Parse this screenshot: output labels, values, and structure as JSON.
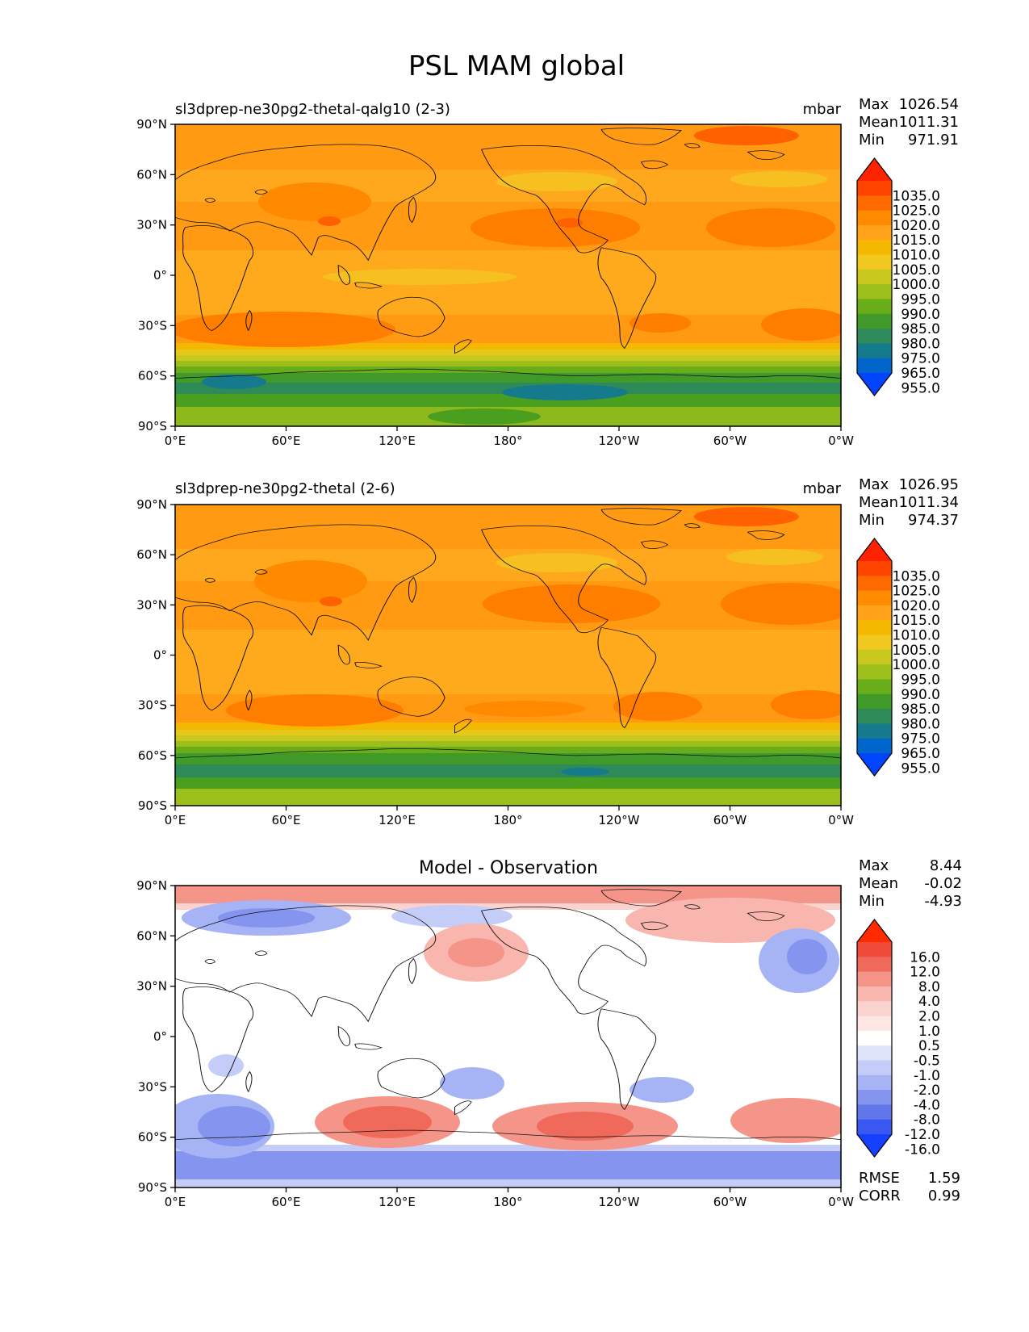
{
  "figure": {
    "title": "PSL MAM global"
  },
  "x_ticks": [
    "0°E",
    "60°E",
    "120°E",
    "180°",
    "120°W",
    "60°W",
    "0°W"
  ],
  "y_ticks": [
    "90°N",
    "60°N",
    "30°N",
    "0°",
    "30°S",
    "60°S",
    "90°S"
  ],
  "panels": [
    {
      "title_left": "sl3dprep-ne30pg2-thetal-qalg10 (2-3)",
      "title_right": "mbar",
      "stats": [
        {
          "label": "Max",
          "value": "1026.54"
        },
        {
          "label": "Mean",
          "value": "1011.31"
        },
        {
          "label": "Min",
          "value": "971.91"
        }
      ]
    },
    {
      "title_left": "sl3dprep-ne30pg2-thetal (2-6)",
      "title_right": "mbar",
      "stats": [
        {
          "label": "Max",
          "value": "1026.95"
        },
        {
          "label": "Mean",
          "value": "1011.34"
        },
        {
          "label": "Min",
          "value": "974.37"
        }
      ]
    },
    {
      "title_center": "Model - Observation",
      "stats": [
        {
          "label": "Max",
          "value": "8.44"
        },
        {
          "label": "Mean",
          "value": "-0.02"
        },
        {
          "label": "Min",
          "value": "-4.93"
        }
      ],
      "bottom_stats": [
        {
          "label": "RMSE",
          "value": "1.59"
        },
        {
          "label": "CORR",
          "value": "0.99"
        }
      ]
    }
  ],
  "colorbar_abs": {
    "labels": [
      "1035.0",
      "1025.0",
      "1020.0",
      "1015.0",
      "1010.0",
      "1005.0",
      "1000.0",
      "995.0",
      "990.0",
      "985.0",
      "980.0",
      "975.0",
      "965.0",
      "955.0"
    ],
    "colors": [
      "#ff2200",
      "#ff4400",
      "#ff6a00",
      "#ff8c00",
      "#ffa21a",
      "#f5b800",
      "#f0c820",
      "#c8c81e",
      "#9cbf1c",
      "#6aad1a",
      "#3f9a2a",
      "#2e8a58",
      "#147a8c",
      "#0066cc",
      "#0044ff"
    ]
  },
  "colorbar_diff": {
    "labels": [
      "16.0",
      "12.0",
      "8.0",
      "4.0",
      "2.0",
      "1.0",
      "0.5",
      "-0.5",
      "-1.0",
      "-2.0",
      "-4.0",
      "-8.0",
      "-12.0",
      "-16.0"
    ],
    "colors": [
      "#ff2a00",
      "#f04a3a",
      "#f06a5c",
      "#f5958a",
      "#f8b6ae",
      "#fbd3ce",
      "#fde6e3",
      "#ffffff",
      "#dfe4fb",
      "#c4cdf8",
      "#a6b3f4",
      "#8595ef",
      "#6276eb",
      "#3a57f0",
      "#1440ff"
    ]
  },
  "chart_data": [
    {
      "type": "heatmap",
      "title": "sl3dprep-ne30pg2-thetal-qalg10 (2-3)",
      "units": "mbar",
      "projection": "PlateCarree, longitude 0°E–360°, latitude 90°S–90°N",
      "xlim": [
        0,
        360
      ],
      "ylim": [
        -90,
        90
      ],
      "levels": [
        955,
        965,
        975,
        980,
        985,
        990,
        995,
        1000,
        1005,
        1010,
        1015,
        1020,
        1025,
        1035
      ],
      "max": 1026.54,
      "mean": 1011.31,
      "min": 971.91,
      "pressure_features": [
        {
          "lon": 120,
          "lat": -38,
          "level": 1020
        },
        {
          "lon": 205,
          "lat": 32,
          "level": 1020
        },
        {
          "lon": 325,
          "lat": 32,
          "level": 1020
        },
        {
          "lon": 265,
          "lat": -33,
          "level": 1020
        },
        {
          "lon": 340,
          "lat": -33,
          "level": 1020
        },
        {
          "lon": 95,
          "lat": 35,
          "level": 1025
        },
        {
          "lon": 35,
          "lat": -62,
          "level": 975
        },
        {
          "lon": 215,
          "lat": -72,
          "level": 965
        },
        {
          "lon": 150,
          "lat": -85,
          "level": 995
        }
      ]
    },
    {
      "type": "heatmap",
      "title": "sl3dprep-ne30pg2-thetal (2-6)",
      "units": "mbar",
      "projection": "PlateCarree, longitude 0°E–360°, latitude 90°S–90°N",
      "xlim": [
        0,
        360
      ],
      "ylim": [
        -90,
        90
      ],
      "levels": [
        955,
        965,
        975,
        980,
        985,
        990,
        995,
        1000,
        1005,
        1010,
        1015,
        1020,
        1025,
        1035
      ],
      "max": 1026.95,
      "mean": 1011.34,
      "min": 974.37,
      "pressure_features": [
        {
          "lon": 120,
          "lat": -38,
          "level": 1020
        },
        {
          "lon": 215,
          "lat": 32,
          "level": 1020
        },
        {
          "lon": 330,
          "lat": 32,
          "level": 1020
        },
        {
          "lon": 265,
          "lat": -33,
          "level": 1020
        },
        {
          "lon": 340,
          "lat": -33,
          "level": 1020
        },
        {
          "lon": 90,
          "lat": 35,
          "level": 1025
        },
        {
          "lon": 220,
          "lat": -72,
          "level": 975
        }
      ]
    },
    {
      "type": "heatmap",
      "title": "Model - Observation",
      "units": "mbar",
      "projection": "PlateCarree, longitude 0°E–360°, latitude 90°S–90°N",
      "xlim": [
        0,
        360
      ],
      "ylim": [
        -90,
        90
      ],
      "levels": [
        -16,
        -12,
        -8,
        -4,
        -2,
        -1,
        -0.5,
        0.5,
        1,
        2,
        4,
        8,
        12,
        16
      ],
      "max": 8.44,
      "mean": -0.02,
      "min": -4.93,
      "rmse": 1.59,
      "corr": 0.99,
      "anomalies": [
        {
          "lon": 125,
          "lat": -55,
          "value": 6
        },
        {
          "lon": 220,
          "lat": -55,
          "value": 6
        },
        {
          "lon": 335,
          "lat": -55,
          "value": 4
        },
        {
          "lon": 150,
          "lat": 40,
          "value": 3
        },
        {
          "lon": 270,
          "lat": 75,
          "value": 2
        },
        {
          "lon": 40,
          "lat": -55,
          "value": -3
        },
        {
          "lon": 200,
          "lat": -80,
          "value": -3
        },
        {
          "lon": 340,
          "lat": 50,
          "value": -4
        },
        {
          "lon": 50,
          "lat": 70,
          "value": -2
        },
        {
          "lon": 160,
          "lat": -25,
          "value": -3
        },
        {
          "lon": 245,
          "lat": -30,
          "value": -3
        },
        {
          "lon": 180,
          "lat": 90,
          "value": 1
        }
      ]
    }
  ]
}
